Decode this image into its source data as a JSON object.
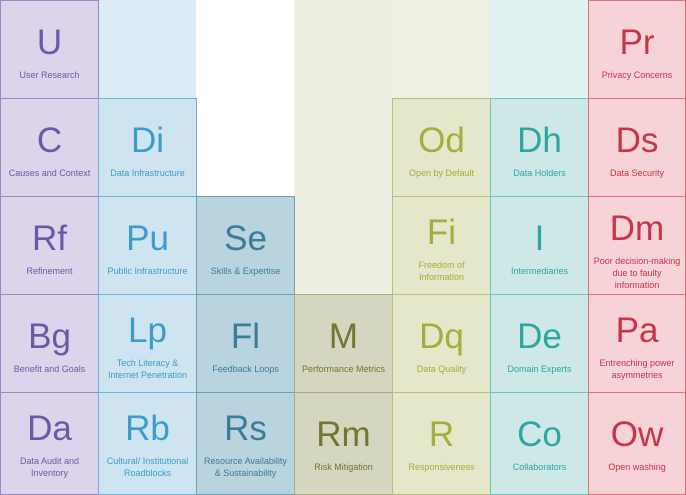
{
  "tiles": {
    "user_research": {
      "symbol": "U",
      "name": "User Research"
    },
    "causes_context": {
      "symbol": "C",
      "name": "Causes and Context"
    },
    "refinement": {
      "symbol": "Rf",
      "name": "Refinement"
    },
    "benefit_goals": {
      "symbol": "Bg",
      "name": "Benefit and Goals"
    },
    "data_audit": {
      "symbol": "Da",
      "name": "Data Audit and Inventory"
    },
    "data_infrastructure": {
      "symbol": "Di",
      "name": "Data Infrastructure"
    },
    "public_infrastructure": {
      "symbol": "Pu",
      "name": "Public Infrastructure"
    },
    "tech_literacy": {
      "symbol": "Lp",
      "name": "Tech Literacy & Internet Penetration"
    },
    "cultural_roadblocks": {
      "symbol": "Rb",
      "name": "Cultural/ Institutional Roadblocks"
    },
    "skills_expertise": {
      "symbol": "Se",
      "name": "Skills & Expertise"
    },
    "feedback_loops": {
      "symbol": "Fl",
      "name": "Feedback Loops"
    },
    "resource_availability": {
      "symbol": "Rs",
      "name": "Resource Availability & Sustainability"
    },
    "performance_metrics": {
      "symbol": "M",
      "name": "Performance Metrics"
    },
    "risk_mitigation": {
      "symbol": "Rm",
      "name": "Risk Mitigation"
    },
    "open_by_default": {
      "symbol": "Od",
      "name": "Open by Default"
    },
    "freedom_information": {
      "symbol": "Fi",
      "name": "Freedom of Information"
    },
    "data_quality": {
      "symbol": "Dq",
      "name": "Data Quality"
    },
    "responsiveness": {
      "symbol": "R",
      "name": "Responsiveness"
    },
    "data_holders": {
      "symbol": "Dh",
      "name": "Data Holders"
    },
    "intermediaries": {
      "symbol": "I",
      "name": "Intermediaries"
    },
    "domain_experts": {
      "symbol": "De",
      "name": "Domain Experts"
    },
    "collaborators": {
      "symbol": "Co",
      "name": "Collaborators"
    },
    "privacy_concerns": {
      "symbol": "Pr",
      "name": "Privacy Concerns"
    },
    "data_security": {
      "symbol": "Ds",
      "name": "Data Security"
    },
    "poor_decision": {
      "symbol": "Dm",
      "name": "Poor decision-making due to faulty information"
    },
    "power_asymmetries": {
      "symbol": "Pa",
      "name": "Entrenching power asymmetries"
    },
    "open_washing": {
      "symbol": "Ow",
      "name": "Open washing"
    }
  }
}
